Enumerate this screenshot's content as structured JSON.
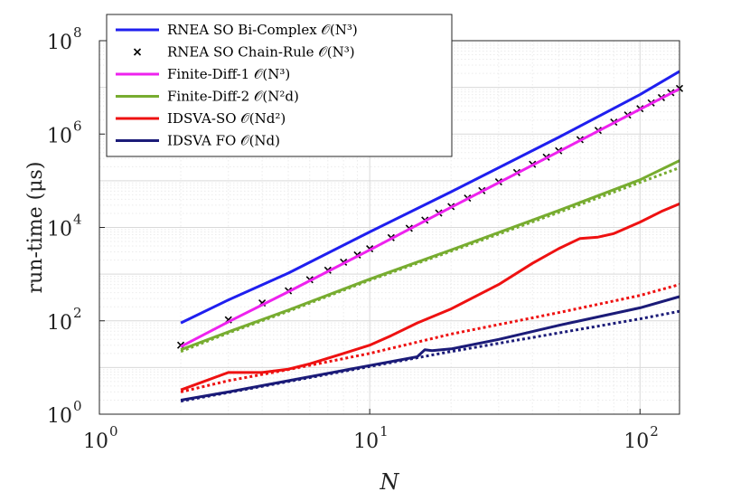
{
  "chart_data": {
    "type": "line",
    "xscale": "log",
    "yscale": "log",
    "xlim": [
      1,
      140
    ],
    "ylim": [
      1,
      100000000
    ],
    "xlabel": "N",
    "ylabel": "run-time (μs)",
    "grid": true,
    "legend_position": "top-left",
    "x_ticks": [
      {
        "value": 1,
        "base": "10",
        "exp": "0"
      },
      {
        "value": 10,
        "base": "10",
        "exp": "1"
      },
      {
        "value": 100,
        "base": "10",
        "exp": "2"
      }
    ],
    "y_ticks": [
      {
        "value": 1,
        "base": "10",
        "exp": "0"
      },
      {
        "value": 100,
        "base": "10",
        "exp": "2"
      },
      {
        "value": 10000,
        "base": "10",
        "exp": "4"
      },
      {
        "value": 1000000,
        "base": "10",
        "exp": "6"
      },
      {
        "value": 100000000,
        "base": "10",
        "exp": "8"
      }
    ],
    "series": [
      {
        "name": "RNEA SO Bi-Complex 𝒪(N³)",
        "color": "#1f1fef",
        "style": "solid",
        "x": [
          2,
          3,
          5,
          10,
          20,
          50,
          100,
          140
        ],
        "y": [
          90,
          280,
          1050,
          8000,
          58000,
          850000,
          7000000,
          22000000
        ]
      },
      {
        "name": "RNEA SO Chain-Rule 𝒪(N³)",
        "color": "#000000",
        "style": "marker-x",
        "x": [
          2,
          3,
          4,
          5,
          6,
          7,
          8,
          9,
          10,
          12,
          14,
          16,
          18,
          20,
          23,
          26,
          30,
          35,
          40,
          45,
          50,
          60,
          70,
          80,
          90,
          100,
          110,
          120,
          130,
          140
        ],
        "y": [
          30,
          105,
          240,
          440,
          760,
          1210,
          1800,
          2570,
          3500,
          6050,
          9600,
          14300,
          20400,
          28000,
          42600,
          61500,
          95000,
          150000,
          225000,
          320000,
          440000,
          760000,
          1200000,
          1800000,
          2560000,
          3500000,
          4650000,
          6050000,
          7700000,
          9500000
        ]
      },
      {
        "name": "Finite-Diff-1 𝒪(N³)",
        "color": "#ee22ee",
        "style": "solid",
        "x": [
          2,
          3,
          5,
          10,
          20,
          50,
          100,
          140
        ],
        "y": [
          28,
          95,
          420,
          3300,
          27000,
          420000,
          3400000,
          9300000
        ]
      },
      {
        "name": "Finite-Diff-2 𝒪(N²d)",
        "color": "#77ac30",
        "style": "solid",
        "x": [
          2,
          3,
          5,
          10,
          20,
          50,
          100,
          140
        ],
        "y": [
          24,
          58,
          170,
          780,
          3300,
          23000,
          105000,
          270000
        ]
      },
      {
        "name": "Finite-Diff-2 dotted",
        "color": "#77ac30",
        "style": "dotted",
        "x": [
          2,
          3,
          5,
          10,
          20,
          50,
          100,
          140
        ],
        "y": [
          22,
          55,
          160,
          740,
          3100,
          21000,
          92000,
          190000
        ]
      },
      {
        "name": "IDSVA-SO 𝒪(Nd²)",
        "color": "#ee1111",
        "style": "solid",
        "x": [
          2,
          3,
          4,
          5,
          6,
          8,
          10,
          12,
          15,
          20,
          30,
          40,
          50,
          60,
          70,
          80,
          100,
          120,
          140
        ],
        "y": [
          3.3,
          7.8,
          7.8,
          9.2,
          12,
          20,
          30,
          48,
          90,
          180,
          600,
          1700,
          3500,
          5800,
          6200,
          7400,
          13000,
          22000,
          32000
        ]
      },
      {
        "name": "IDSVA-SO dotted",
        "color": "#ee1111",
        "style": "dotted",
        "x": [
          2,
          3,
          5,
          10,
          20,
          50,
          100,
          140
        ],
        "y": [
          3.0,
          5.2,
          9.0,
          20,
          52,
          150,
          350,
          600
        ]
      },
      {
        "name": "IDSVA FO 𝒪(Nd)",
        "color": "#1b1b78",
        "style": "solid",
        "x": [
          2,
          3,
          5,
          10,
          15,
          16,
          17,
          20,
          30,
          50,
          100,
          140
        ],
        "y": [
          2.0,
          3.0,
          5.2,
          11,
          17,
          24,
          23,
          25,
          40,
          80,
          190,
          330
        ]
      },
      {
        "name": "IDSVA FO dotted",
        "color": "#1b1b78",
        "style": "dotted",
        "x": [
          2,
          3,
          5,
          10,
          20,
          50,
          100,
          140
        ],
        "y": [
          1.9,
          2.9,
          5.0,
          10.5,
          22,
          55,
          110,
          160
        ]
      }
    ],
    "legend": [
      {
        "label": "RNEA SO Bi-Complex 𝒪(N³)",
        "color": "#1f1fef",
        "style": "line"
      },
      {
        "label": "RNEA SO Chain-Rule 𝒪(N³)",
        "color": "#000000",
        "style": "marker-x"
      },
      {
        "label": "Finite-Diff-1 𝒪(N³)",
        "color": "#ee22ee",
        "style": "line"
      },
      {
        "label": "Finite-Diff-2 𝒪(N²d)",
        "color": "#77ac30",
        "style": "line"
      },
      {
        "label": "IDSVA-SO 𝒪(Nd²)",
        "color": "#ee1111",
        "style": "line"
      },
      {
        "label": "IDSVA FO 𝒪(Nd)",
        "color": "#1b1b78",
        "style": "line"
      }
    ]
  }
}
